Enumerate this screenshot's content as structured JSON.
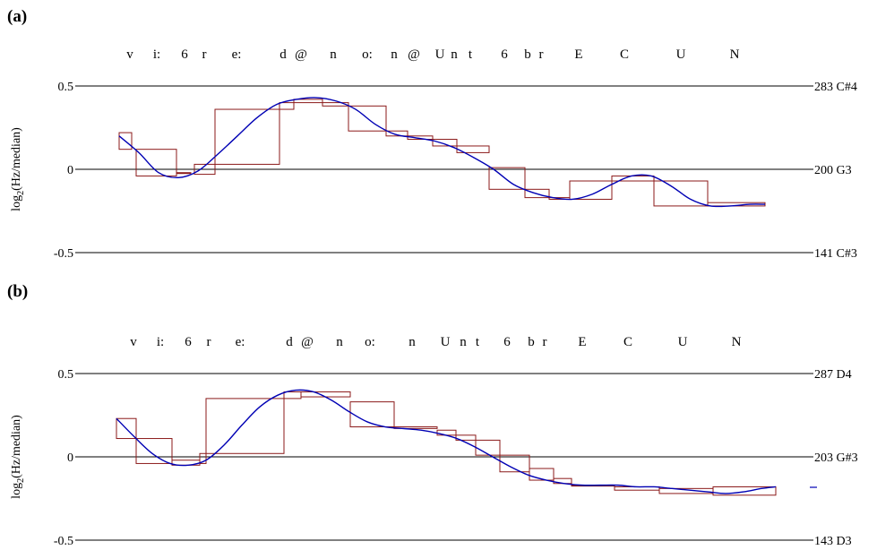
{
  "chart_data": [
    {
      "type": "line",
      "panel_label": "(a)",
      "ylabel": "log2(Hz/median)",
      "ylim": [
        -0.5,
        0.5
      ],
      "yticks": [
        "0.5",
        "0",
        "-0.5"
      ],
      "right_labels": [
        "283 C#4",
        "200 G3",
        "141 C#3"
      ],
      "phonemes": [
        "v",
        "i:",
        "6",
        "r",
        "e:",
        "d",
        "@",
        "n",
        "o:",
        "n",
        "@",
        "U",
        "n",
        "t",
        "6",
        "b",
        "r",
        "E",
        "C",
        "U",
        "N"
      ],
      "colors": {
        "steps": "#8b1a1a",
        "curve": "#0000b4",
        "axes": "#000000"
      },
      "steps": [
        [
          133,
          147,
          0.22,
          0.12
        ],
        [
          152,
          197,
          0.12,
          -0.04
        ],
        [
          197,
          213,
          -0.02,
          -0.02
        ],
        [
          217,
          240,
          0.03,
          -0.03
        ],
        [
          240,
          312,
          0.36,
          0.03
        ],
        [
          312,
          328,
          0.4,
          0.36
        ],
        [
          328,
          360,
          0.42,
          0.4
        ],
        [
          360,
          389,
          0.4,
          0.38
        ],
        [
          389,
          431,
          0.38,
          0.23
        ],
        [
          431,
          455,
          0.23,
          0.2
        ],
        [
          455,
          483,
          0.2,
          0.18
        ],
        [
          483,
          510,
          0.18,
          0.14
        ],
        [
          510,
          546,
          0.14,
          0.1
        ],
        [
          546,
          586,
          0.01,
          -0.12
        ],
        [
          586,
          613,
          -0.12,
          -0.17
        ],
        [
          613,
          636,
          -0.17,
          -0.18
        ],
        [
          636,
          683,
          -0.07,
          -0.18
        ],
        [
          683,
          730,
          -0.04,
          -0.07
        ],
        [
          730,
          790,
          -0.07,
          -0.22
        ],
        [
          790,
          854,
          -0.2,
          -0.22
        ]
      ],
      "curve_x": [
        133,
        155,
        177,
        199,
        221,
        243,
        265,
        287,
        309,
        331,
        353,
        375,
        397,
        419,
        441,
        463,
        485,
        507,
        529,
        551,
        573,
        595,
        617,
        639,
        661,
        683,
        705,
        727,
        749,
        771,
        793,
        815,
        837,
        854
      ],
      "curve_y": [
        0.2,
        0.1,
        -0.02,
        -0.05,
        -0.01,
        0.09,
        0.2,
        0.31,
        0.39,
        0.42,
        0.43,
        0.41,
        0.36,
        0.27,
        0.21,
        0.19,
        0.17,
        0.13,
        0.07,
        0.0,
        -0.09,
        -0.14,
        -0.17,
        -0.18,
        -0.15,
        -0.09,
        -0.04,
        -0.04,
        -0.1,
        -0.18,
        -0.22,
        -0.22,
        -0.21,
        -0.21
      ]
    },
    {
      "type": "line",
      "panel_label": "(b)",
      "ylabel": "log2(Hz/median)",
      "ylim": [
        -0.5,
        0.5
      ],
      "yticks": [
        "0.5",
        "0",
        "-0.5"
      ],
      "right_labels": [
        "287 D4",
        "203 G#3",
        "143 D3"
      ],
      "phonemes": [
        "v",
        "i:",
        "6",
        "r",
        "e:",
        "d",
        "@",
        "n",
        "o:",
        "n",
        "U",
        "n",
        "t",
        "6",
        "b",
        "r",
        "E",
        "C",
        "U",
        "N"
      ],
      "colors": {
        "steps": "#8b1a1a",
        "curve": "#0000b4",
        "axes": "#000000"
      },
      "steps": [
        [
          130,
          152,
          0.23,
          0.11
        ],
        [
          152,
          192,
          0.11,
          -0.04
        ],
        [
          192,
          223,
          -0.02,
          -0.05
        ],
        [
          223,
          230,
          0.02,
          -0.04
        ],
        [
          230,
          317,
          0.35,
          0.02
        ],
        [
          317,
          336,
          0.39,
          0.35
        ],
        [
          336,
          391,
          0.39,
          0.36
        ],
        [
          391,
          440,
          0.33,
          0.18
        ],
        [
          440,
          488,
          0.18,
          0.17
        ],
        [
          488,
          509,
          0.16,
          0.13
        ],
        [
          509,
          531,
          0.13,
          0.1
        ],
        [
          531,
          558,
          0.1,
          0.01
        ],
        [
          558,
          591,
          0.01,
          -0.09
        ],
        [
          591,
          618,
          -0.07,
          -0.14
        ],
        [
          618,
          638,
          -0.13,
          -0.16
        ],
        [
          638,
          686,
          -0.17,
          -0.17
        ],
        [
          686,
          736,
          -0.18,
          -0.2
        ],
        [
          736,
          796,
          -0.19,
          -0.22
        ],
        [
          796,
          866,
          -0.18,
          -0.23
        ]
      ],
      "curve_x": [
        130,
        150,
        170,
        190,
        210,
        230,
        250,
        270,
        290,
        310,
        330,
        350,
        370,
        390,
        410,
        430,
        450,
        470,
        490,
        510,
        530,
        550,
        570,
        590,
        610,
        630,
        650,
        670,
        690,
        710,
        730,
        750,
        770,
        790,
        810,
        830,
        850,
        866
      ],
      "curve_y": [
        0.23,
        0.12,
        0.02,
        -0.04,
        -0.05,
        -0.02,
        0.07,
        0.19,
        0.3,
        0.37,
        0.4,
        0.39,
        0.34,
        0.27,
        0.21,
        0.18,
        0.17,
        0.16,
        0.14,
        0.11,
        0.06,
        0.0,
        -0.06,
        -0.11,
        -0.14,
        -0.16,
        -0.17,
        -0.17,
        -0.17,
        -0.18,
        -0.18,
        -0.19,
        -0.2,
        -0.21,
        -0.22,
        -0.21,
        -0.19,
        -0.18
      ]
    }
  ]
}
